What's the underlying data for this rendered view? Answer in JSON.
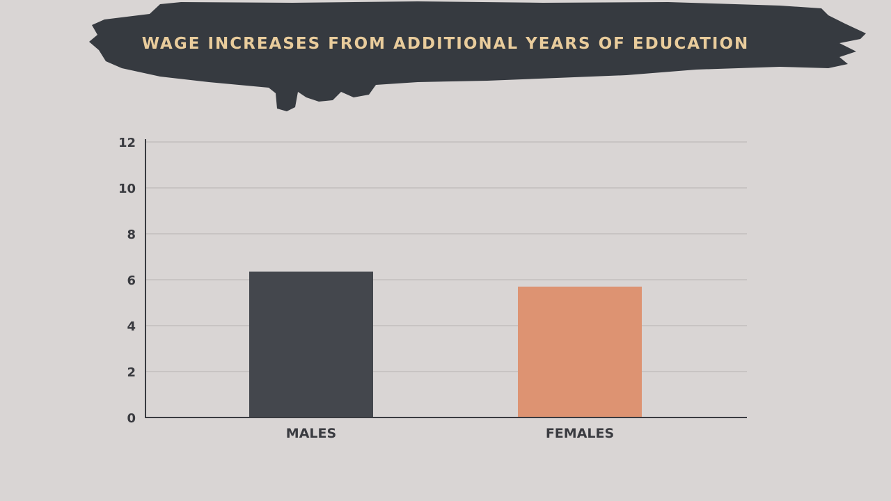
{
  "chart_data": {
    "type": "bar",
    "title": "WAGE INCREASES FROM ADDITIONAL YEARS OF EDUCATION",
    "categories": [
      "MALES",
      "FEMALES"
    ],
    "values": [
      6.35,
      5.7
    ],
    "bar_colors": [
      "#44474d",
      "#dd9372"
    ],
    "xlabel": "",
    "ylabel": "",
    "ylim": [
      0,
      12
    ],
    "yticks": [
      0,
      2,
      4,
      6,
      8,
      10,
      12
    ],
    "grid": true,
    "legend": "none"
  },
  "colors": {
    "background": "#d9d5d4",
    "banner": "#363a40",
    "title_text": "#e9cc9c",
    "axis": "#3a3b40",
    "gridline": "#bfbbb9",
    "tick_text": "#3a3b40"
  }
}
